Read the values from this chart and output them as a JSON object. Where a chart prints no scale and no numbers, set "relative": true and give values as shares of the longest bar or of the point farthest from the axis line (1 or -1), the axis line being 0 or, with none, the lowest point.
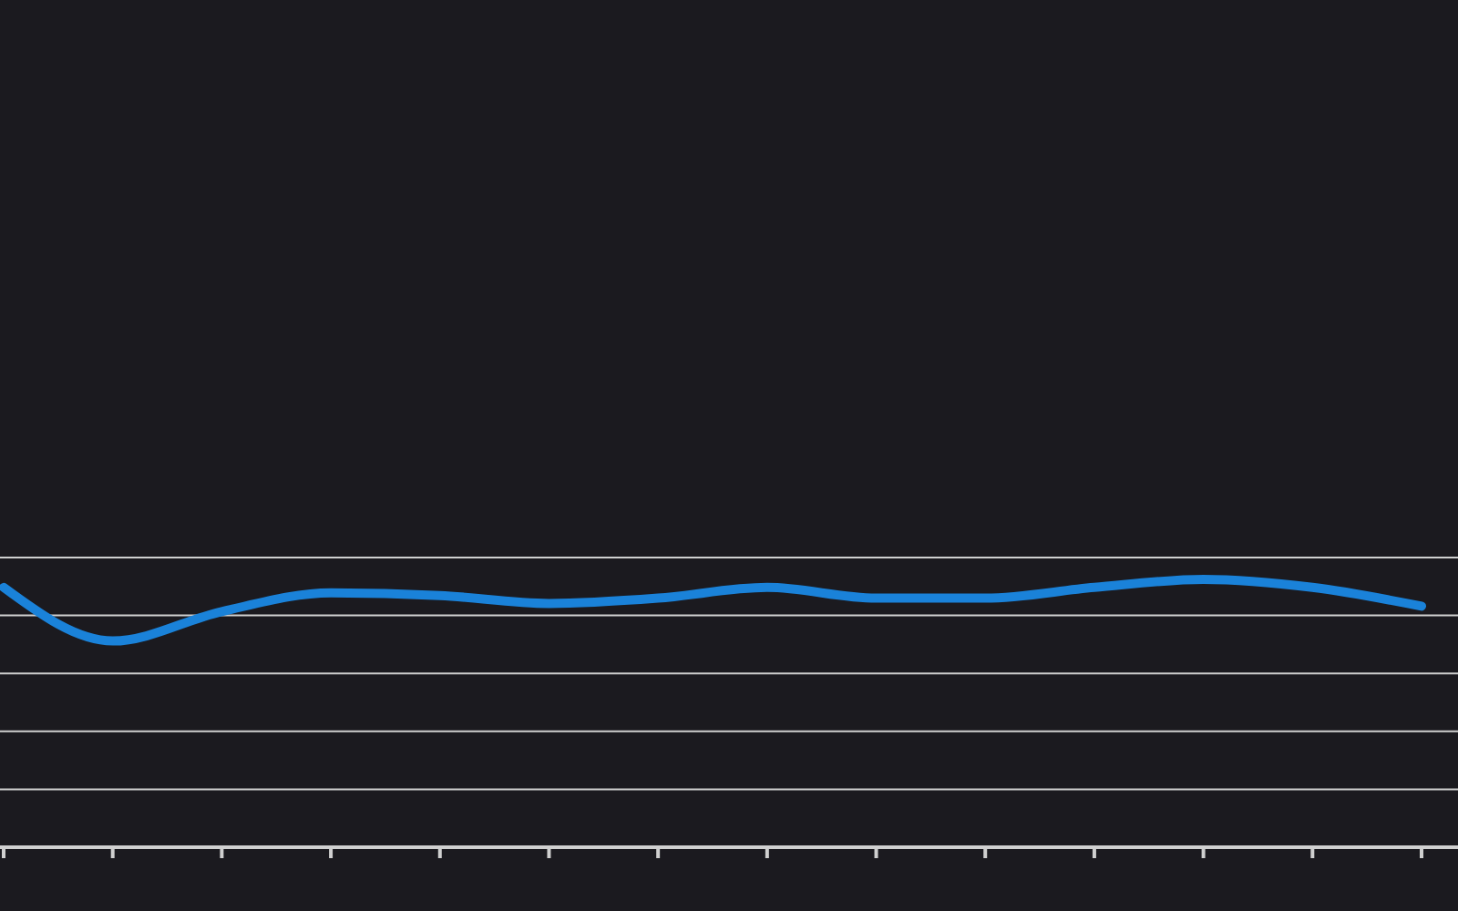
{
  "chart_data": {
    "type": "line",
    "relative": true,
    "categories": [
      null,
      null,
      null,
      null,
      null,
      null,
      null,
      null,
      null,
      null,
      null,
      null,
      null,
      null
    ],
    "series": [
      {
        "color": "#1a82d9",
        "values": [
          0.97,
          0.77,
          0.88,
          0.95,
          0.94,
          0.91,
          0.93,
          0.97,
          0.93,
          0.93,
          0.97,
          1,
          0.97,
          0.9
        ]
      }
    ],
    "grid": "y",
    "marker": "none",
    "line_style": "solid"
  }
}
